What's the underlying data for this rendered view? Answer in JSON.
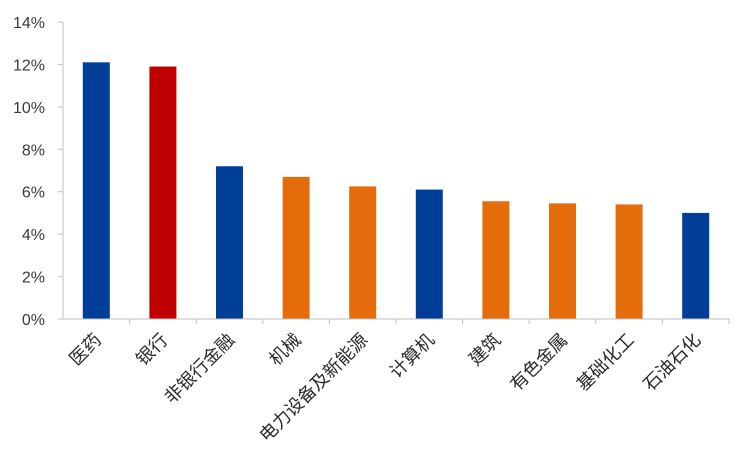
{
  "chart_data": {
    "type": "bar",
    "title": "",
    "xlabel": "",
    "ylabel": "",
    "categories": [
      "医药",
      "银行",
      "非银行金融",
      "机械",
      "电力设备及新能源",
      "计算机",
      "建筑",
      "有色金属",
      "基础化工",
      "石油石化"
    ],
    "values": [
      12.1,
      11.9,
      7.2,
      6.7,
      6.25,
      6.1,
      5.55,
      5.45,
      5.4,
      5.0
    ],
    "colors": [
      "#003f98",
      "#c00000",
      "#003f98",
      "#e46c0a",
      "#e46c0a",
      "#003f98",
      "#e46c0a",
      "#e46c0a",
      "#e46c0a",
      "#003f98"
    ],
    "ylim": [
      0,
      14
    ],
    "yticks": [
      0,
      2,
      4,
      6,
      8,
      10,
      12,
      14
    ],
    "ytick_labels": [
      "0%",
      "2%",
      "4%",
      "6%",
      "8%",
      "10%",
      "12%",
      "14%"
    ],
    "grid": false,
    "legend": "none"
  }
}
